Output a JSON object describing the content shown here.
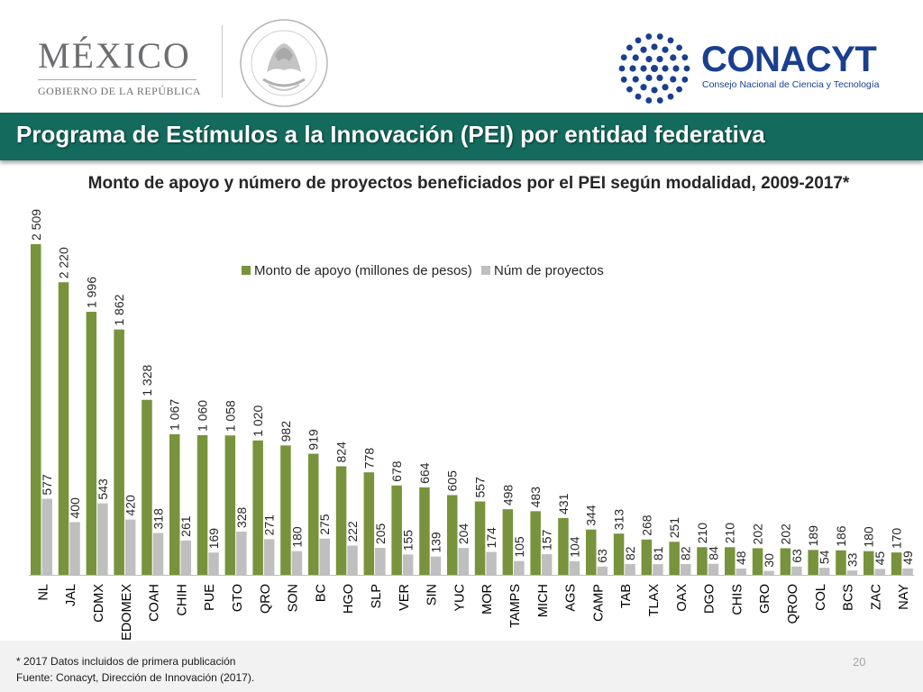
{
  "header": {
    "mexico_logo": {
      "word": "MÉXICO",
      "subtitle": "GOBIERNO DE LA REPÚBLICA"
    },
    "seal": {
      "text": "ESTADOS UNIDOS MEXICANOS"
    },
    "conacyt_logo": {
      "word": "CONACYT",
      "subtitle": "Consejo Nacional de Ciencia y Tecnología",
      "color": "#1a3f8f"
    }
  },
  "banner": {
    "title": "Programa de Estímulos a la Innovación (PEI) por entidad federativa",
    "color": "#146a5d"
  },
  "chart_data": {
    "type": "bar",
    "title": "Monto de apoyo y número de proyectos beneficiados por el PEI según modalidad, 2009-2017*",
    "categories": [
      "NL",
      "JAL",
      "CDMX",
      "EDOMEX",
      "COAH",
      "CHIH",
      "PUE",
      "GTO",
      "QRO",
      "SON",
      "BC",
      "HGO",
      "SLP",
      "VER",
      "SIN",
      "YUC",
      "MOR",
      "TAMPS",
      "MICH",
      "AGS",
      "CAMP",
      "TAB",
      "TLAX",
      "OAX",
      "DGO",
      "CHIS",
      "GRO",
      "QROO",
      "COL",
      "BCS",
      "ZAC",
      "NAY"
    ],
    "series": [
      {
        "name": "Monto de apoyo (millones de pesos)",
        "color": "#77933c",
        "values": [
          2509,
          2220,
          1996,
          1862,
          1328,
          1067,
          1060,
          1058,
          1020,
          982,
          919,
          824,
          778,
          678,
          664,
          605,
          557,
          498,
          483,
          431,
          344,
          313,
          268,
          251,
          210,
          210,
          202,
          202,
          189,
          186,
          180,
          170
        ],
        "labels": [
          "2 509",
          "2 220",
          "1 996",
          "1 862",
          "1 328",
          "1 067",
          "1 060",
          "1 058",
          "1 020",
          "982",
          "919",
          "824",
          "778",
          "678",
          "664",
          "605",
          "557",
          "498",
          "483",
          "431",
          "344",
          "313",
          "268",
          "251",
          "210",
          "210",
          "202",
          "202",
          "189",
          "186",
          "180",
          "170"
        ]
      },
      {
        "name": "Núm de proyectos",
        "color": "#bfbfbf",
        "values": [
          577,
          400,
          543,
          420,
          318,
          261,
          169,
          328,
          271,
          180,
          275,
          222,
          205,
          155,
          139,
          204,
          174,
          105,
          157,
          104,
          63,
          82,
          81,
          82,
          84,
          48,
          30,
          63,
          54,
          33,
          45,
          49
        ],
        "labels": [
          "577",
          "400",
          "543",
          "420",
          "318",
          "261",
          "169",
          "328",
          "271",
          "180",
          "275",
          "222",
          "205",
          "155",
          "139",
          "204",
          "174",
          "105",
          "157",
          "104",
          "63",
          "82",
          "81",
          "82",
          "84",
          "48",
          "30",
          "63",
          "54",
          "33",
          "45",
          "49"
        ]
      }
    ],
    "ylim": [
      0,
      2509
    ],
    "xlabel": "",
    "ylabel": "",
    "legend_position": "top-center"
  },
  "footer": {
    "note": "* 2017 Datos incluidos de primera publicación",
    "source": "Fuente: Conacyt, Dirección de Innovación (2017).",
    "page_number": "20"
  }
}
